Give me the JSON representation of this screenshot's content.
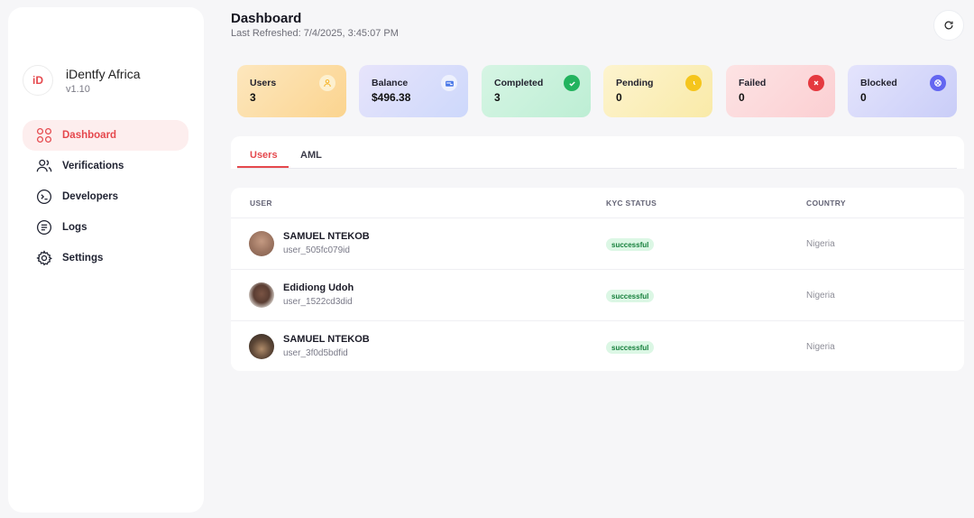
{
  "brand": {
    "logo_text": "iD",
    "name": "iDentfy Africa",
    "version": "v1.10"
  },
  "nav": [
    {
      "label": "Dashboard",
      "icon": "grid-icon",
      "active": true
    },
    {
      "label": "Verifications",
      "icon": "users-icon",
      "active": false
    },
    {
      "label": "Developers",
      "icon": "terminal-icon",
      "active": false
    },
    {
      "label": "Logs",
      "icon": "list-icon",
      "active": false
    },
    {
      "label": "Settings",
      "icon": "gear-icon",
      "active": false
    }
  ],
  "header": {
    "title": "Dashboard",
    "last_refreshed": "Last Refreshed: 7/4/2025, 3:45:07 PM",
    "refresh_icon": "refresh-icon"
  },
  "stats": [
    {
      "label": "Users",
      "value": "3",
      "icon": "user-icon",
      "bg": "#fcd99c",
      "icon_color": "#f5b731"
    },
    {
      "label": "Balance",
      "value": "$496.38",
      "icon": "wallet-icon",
      "bg": "#d9dcfb",
      "icon_color": "#4a78e8"
    },
    {
      "label": "Completed",
      "value": "3",
      "icon": "check-circle-icon",
      "bg": "#c9f2dc",
      "icon_color": "#22b35e"
    },
    {
      "label": "Pending",
      "value": "0",
      "icon": "clock-icon",
      "bg": "#fbefb8",
      "icon_color": "#f5c51c"
    },
    {
      "label": "Failed",
      "value": "0",
      "icon": "x-circle-icon",
      "bg": "#fcd6d8",
      "icon_color": "#e5393f"
    },
    {
      "label": "Blocked",
      "value": "0",
      "icon": "blocked-icon",
      "bg": "#d7d9fb",
      "icon_color": "#6366f1"
    }
  ],
  "tabs": [
    {
      "label": "Users",
      "active": true
    },
    {
      "label": "AML",
      "active": false
    }
  ],
  "table": {
    "headers": {
      "user": "USER",
      "kyc": "KYC STATUS",
      "country": "COUNTRY"
    },
    "rows": [
      {
        "name": "SAMUEL NTEKOB",
        "id": "user_505fc079id",
        "kyc": "successful",
        "country": "Nigeria"
      },
      {
        "name": "Edidiong Udoh",
        "id": "user_1522cd3did",
        "kyc": "successful",
        "country": "Nigeria"
      },
      {
        "name": "SAMUEL NTEKOB",
        "id": "user_3f0d5bdfid",
        "kyc": "successful",
        "country": "Nigeria"
      }
    ]
  }
}
